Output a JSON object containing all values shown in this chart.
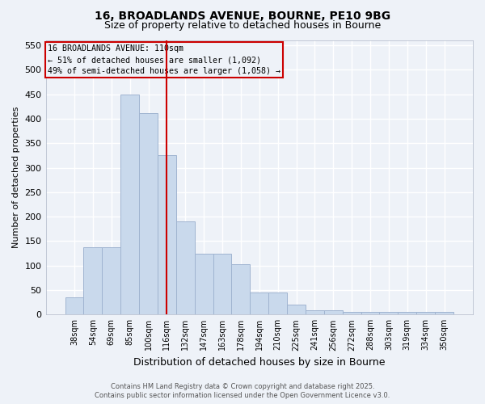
{
  "title_line1": "16, BROADLANDS AVENUE, BOURNE, PE10 9BG",
  "title_line2": "Size of property relative to detached houses in Bourne",
  "xlabel": "Distribution of detached houses by size in Bourne",
  "ylabel": "Number of detached properties",
  "categories": [
    "38sqm",
    "54sqm",
    "69sqm",
    "85sqm",
    "100sqm",
    "116sqm",
    "132sqm",
    "147sqm",
    "163sqm",
    "178sqm",
    "194sqm",
    "210sqm",
    "225sqm",
    "241sqm",
    "256sqm",
    "272sqm",
    "288sqm",
    "303sqm",
    "319sqm",
    "334sqm",
    "350sqm"
  ],
  "values": [
    35,
    137,
    137,
    450,
    411,
    325,
    190,
    125,
    125,
    103,
    45,
    45,
    20,
    9,
    9,
    5,
    5,
    5,
    5,
    5,
    5
  ],
  "bar_color": "#c9d9ec",
  "bar_edge_color": "#a0b4d0",
  "redline_x": 5.0,
  "ylim": [
    0,
    560
  ],
  "yticks": [
    0,
    50,
    100,
    150,
    200,
    250,
    300,
    350,
    400,
    450,
    500,
    550
  ],
  "annotation_title": "16 BROADLANDS AVENUE: 110sqm",
  "annotation_line2": "← 51% of detached houses are smaller (1,092)",
  "annotation_line3": "49% of semi-detached houses are larger (1,058) →",
  "footer_line1": "Contains HM Land Registry data © Crown copyright and database right 2025.",
  "footer_line2": "Contains public sector information licensed under the Open Government Licence v3.0.",
  "bg_color": "#eef2f8",
  "grid_color": "#ffffff"
}
